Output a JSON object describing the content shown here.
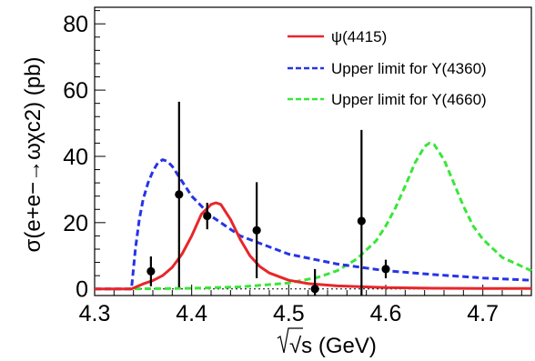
{
  "chart_data": {
    "type": "line",
    "xlabel": "√s (GeV)",
    "ylabel": "σ(e+e−→ωχc2) (pb)",
    "xlim": [
      4.3,
      4.75
    ],
    "ylim": [
      -2,
      85
    ],
    "x_ticks": [
      "4.3",
      "4.4",
      "4.5",
      "4.6",
      "4.7"
    ],
    "y_ticks": [
      "0",
      "20",
      "40",
      "60",
      "80"
    ],
    "legend_position": "top-right",
    "series": [
      {
        "name": "ψ(4415)",
        "style": "solid",
        "color": "#e8262a",
        "x": [
          4.3,
          4.338,
          4.35,
          4.36,
          4.37,
          4.38,
          4.39,
          4.4,
          4.41,
          4.42,
          4.425,
          4.43,
          4.44,
          4.45,
          4.46,
          4.47,
          4.48,
          4.5,
          4.52,
          4.55,
          4.6,
          4.65,
          4.7,
          4.75
        ],
        "y": [
          0,
          0,
          1.5,
          2.5,
          4.0,
          6.5,
          10.5,
          16.0,
          22.5,
          25.5,
          26.0,
          25.5,
          21.0,
          15.0,
          10.0,
          6.8,
          4.8,
          2.6,
          1.6,
          0.9,
          0.4,
          0.2,
          0.1,
          0.1
        ]
      },
      {
        "name": "Upper limit for Y(4360)",
        "style": "dashed",
        "color": "#2634e6",
        "x": [
          4.3,
          4.338,
          4.342,
          4.346,
          4.35,
          4.355,
          4.36,
          4.365,
          4.37,
          4.375,
          4.38,
          4.39,
          4.4,
          4.42,
          4.45,
          4.5,
          4.55,
          4.6,
          4.65,
          4.7,
          4.75
        ],
        "y": [
          0,
          0,
          12.0,
          21.0,
          27.0,
          32.0,
          35.5,
          38.0,
          39.0,
          38.5,
          37.0,
          32.5,
          28.0,
          22.0,
          16.0,
          10.5,
          7.5,
          5.5,
          4.3,
          3.3,
          2.6
        ]
      },
      {
        "name": "Upper limit for Y(4660)",
        "style": "dashed",
        "color": "#39e639",
        "x": [
          4.3,
          4.338,
          4.4,
          4.45,
          4.5,
          4.53,
          4.55,
          4.57,
          4.59,
          4.6,
          4.61,
          4.62,
          4.63,
          4.64,
          4.645,
          4.65,
          4.66,
          4.67,
          4.68,
          4.69,
          4.7,
          4.72,
          4.75
        ],
        "y": [
          0,
          0,
          0.2,
          0.6,
          1.8,
          3.5,
          5.5,
          9.0,
          14.5,
          19.0,
          24.5,
          31.0,
          38.0,
          43.0,
          44.0,
          43.5,
          39.0,
          32.0,
          25.0,
          19.0,
          15.0,
          9.5,
          5.5
        ]
      }
    ],
    "data_points": [
      {
        "x": 4.358,
        "y": 5.3,
        "err": 4.5
      },
      {
        "x": 4.387,
        "y": 28.5,
        "err": 28.0
      },
      {
        "x": 4.416,
        "y": 22.0,
        "err": 4.0
      },
      {
        "x": 4.467,
        "y": 17.7,
        "err": 14.5
      },
      {
        "x": 4.527,
        "y": 0.0,
        "err": 6.0
      },
      {
        "x": 4.575,
        "y": 20.5,
        "err": 27.5
      },
      {
        "x": 4.6,
        "y": 6.0,
        "err": 2.8
      }
    ]
  }
}
